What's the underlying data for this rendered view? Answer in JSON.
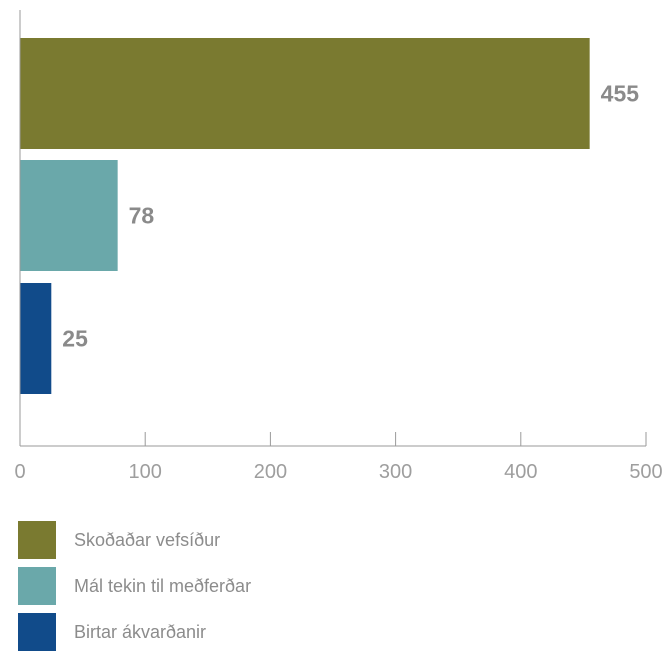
{
  "chart_data": {
    "type": "bar",
    "orientation": "horizontal",
    "categories": [
      "Skoðaðar vefsíður",
      "Mál tekin til meðferðar",
      "Birtar ákvarðanir"
    ],
    "values": [
      455,
      78,
      25
    ],
    "colors": [
      "#7a7a30",
      "#6aa8aa",
      "#114b8a"
    ],
    "xlim": [
      0,
      500
    ],
    "xticks": [
      0,
      100,
      200,
      300,
      400,
      500
    ],
    "grid": false,
    "legend_position": "bottom"
  },
  "legend": {
    "items": [
      {
        "label": "Skoðaðar vefsíður",
        "color": "#7a7a30"
      },
      {
        "label": "Mál tekin til meðferðar",
        "color": "#6aa8aa"
      },
      {
        "label": "Birtar ákvarðanir",
        "color": "#114b8a"
      }
    ]
  }
}
